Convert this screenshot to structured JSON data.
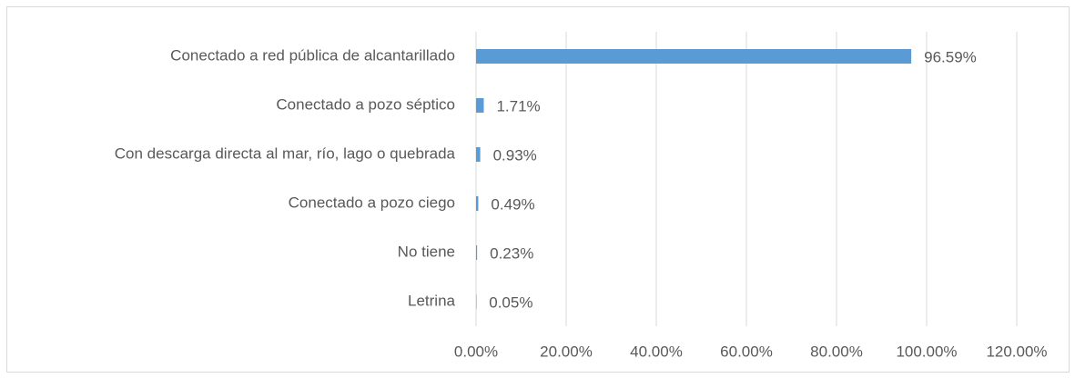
{
  "chart_data": {
    "type": "bar",
    "orientation": "horizontal",
    "categories": [
      "Conectado a red pública de alcantarillado",
      "Conectado a pozo séptico",
      "Con descarga directa al mar, río, lago o quebrada",
      "Conectado a pozo ciego",
      "No tiene",
      "Letrina"
    ],
    "values": [
      96.59,
      1.71,
      0.93,
      0.49,
      0.23,
      0.05
    ],
    "value_labels": [
      "96.59%",
      "1.71%",
      "0.93%",
      "0.49%",
      "0.23%",
      "0.05%"
    ],
    "color": "#5b9bd5",
    "xlim": [
      0,
      120
    ],
    "xticks": [
      {
        "value": 0,
        "label": "0.00%"
      },
      {
        "value": 20,
        "label": "20.00%"
      },
      {
        "value": 40,
        "label": "40.00%"
      },
      {
        "value": 60,
        "label": "60.00%"
      },
      {
        "value": 80,
        "label": "80.00%"
      },
      {
        "value": 100,
        "label": "100.00%"
      },
      {
        "value": 120,
        "label": "120.00%"
      }
    ],
    "grid": true
  }
}
